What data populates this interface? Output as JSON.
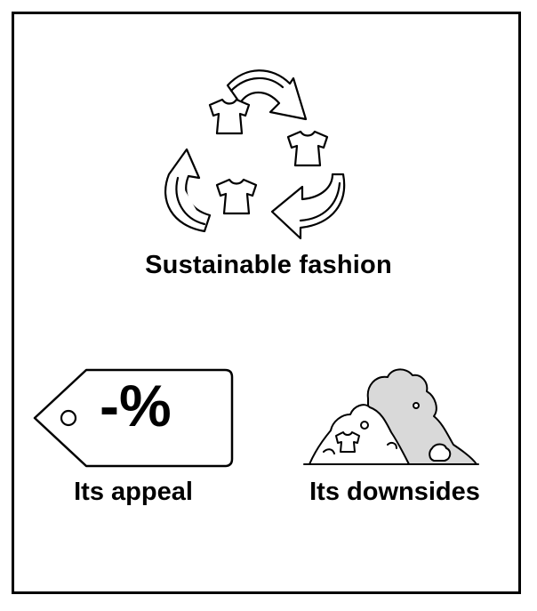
{
  "title": "Sustainable fashion",
  "tag": {
    "text": "-%"
  },
  "labels": {
    "appeal": "Its appeal",
    "downsides": "Its downsides"
  },
  "icons": {
    "recycle": "recycle-clothing-icon",
    "tag": "price-tag-icon",
    "pile": "clothing-pile-icon"
  },
  "colors": {
    "stroke": "#000000",
    "pile_fill": "#d9d9d9",
    "background": "#ffffff"
  }
}
